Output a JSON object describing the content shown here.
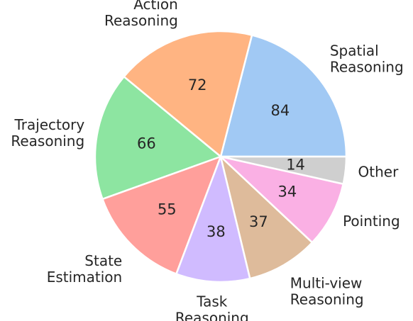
{
  "chart_data": {
    "type": "pie",
    "start_angle": 0,
    "direction": "counterclockwise",
    "slices": [
      {
        "label": "Spatial\nReasoning",
        "value": 84,
        "color": "#a1c9f4"
      },
      {
        "label": "Action\nReasoning",
        "value": 72,
        "color": "#ffb482"
      },
      {
        "label": "Trajectory\nReasoning",
        "value": 66,
        "color": "#8de5a1"
      },
      {
        "label": "State\nEstimation",
        "value": 55,
        "color": "#ff9f9b"
      },
      {
        "label": "Task\nReasoning",
        "value": 38,
        "color": "#d0bbff"
      },
      {
        "label": "Multi-view\nReasoning",
        "value": 37,
        "color": "#debb9b"
      },
      {
        "label": "Pointing",
        "value": 34,
        "color": "#fab0e4"
      },
      {
        "label": "Other",
        "value": 14,
        "color": "#cfcfcf"
      }
    ]
  }
}
